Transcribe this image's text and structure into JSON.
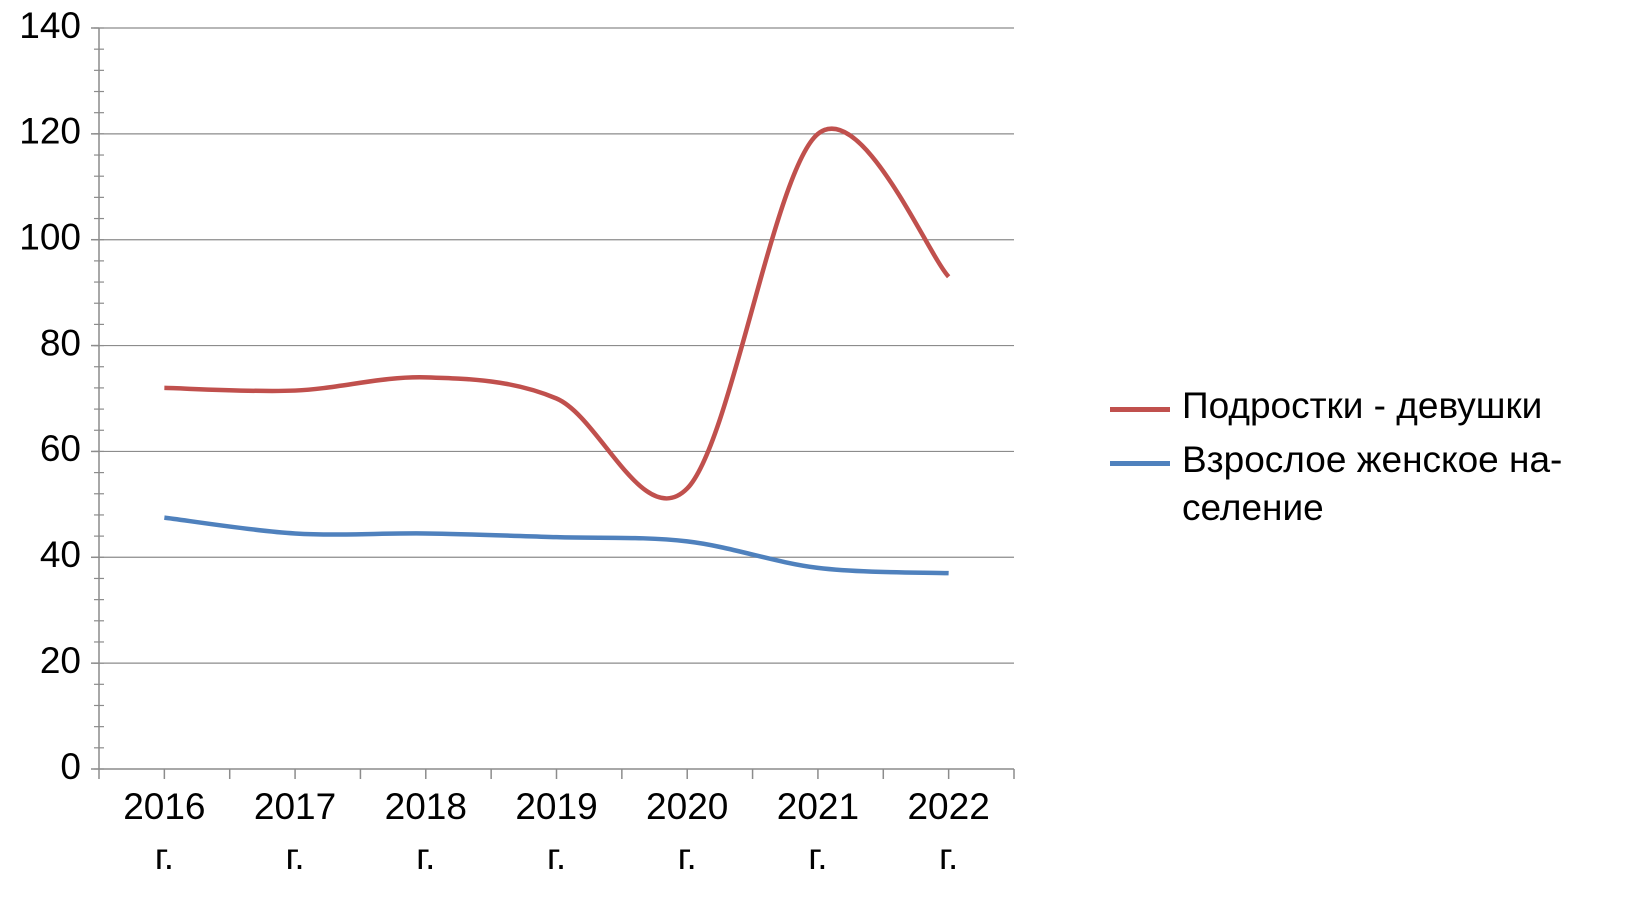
{
  "chart_data": {
    "type": "line",
    "categories": [
      "2016 г.",
      "2017 г.",
      "2018 г.",
      "2019 г.",
      "2020 г.",
      "2021 г.",
      "2022 г."
    ],
    "ylim": [
      0,
      140
    ],
    "yticks": [
      0,
      20,
      40,
      60,
      80,
      100,
      120,
      140
    ],
    "grid": true,
    "smooth": true,
    "legend_position": "right",
    "series": [
      {
        "name": "Подростки - девушки",
        "color": "#c0504d",
        "values": [
          72,
          71.5,
          74,
          70,
          53,
          120,
          93
        ]
      },
      {
        "name": "Взрослое женское на-селение",
        "color": "#4f81bd",
        "values": [
          47.5,
          44.5,
          44.5,
          43.8,
          43,
          38,
          37
        ]
      }
    ]
  }
}
